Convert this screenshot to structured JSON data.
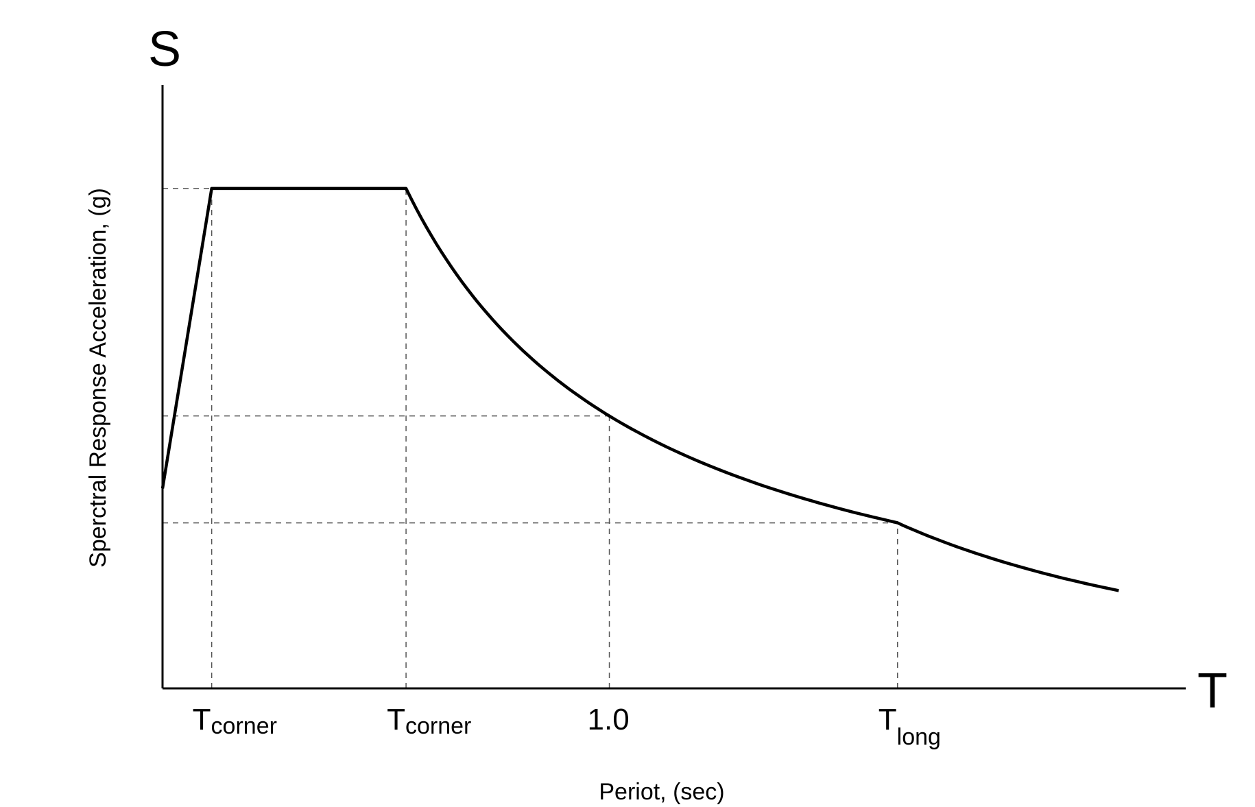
{
  "chart_data": {
    "type": "line",
    "title": "",
    "xlabel": "Periot, (sec)",
    "ylabel": "Sperctral Response Acceleration, (g)",
    "x_axis_symbol": "T",
    "y_axis_symbol": "S",
    "xlim": [
      0,
      2.29
    ],
    "ylim": [
      0,
      1.207
    ],
    "grid": false,
    "x_ticks": [
      {
        "x": 0.11,
        "main": "T",
        "sub": "corner"
      },
      {
        "x": 0.545,
        "main": "T",
        "sub": "corner"
      },
      {
        "x": 1.0,
        "main": "1.0",
        "sub": ""
      },
      {
        "x": 1.645,
        "main": "T",
        "sub": "long"
      }
    ],
    "series": [
      {
        "points": [
          [
            0,
            0.4
          ],
          [
            0.11,
            1.0
          ],
          [
            0.545,
            1.0
          ],
          [
            1.0,
            0.545
          ],
          [
            1.645,
            0.331
          ],
          [
            2.14,
            0.196
          ]
        ],
        "segments": [
          "linear",
          "constant",
          "inverse-T",
          "inverse-T",
          "inverse-T-squared"
        ],
        "color": "#000000"
      }
    ],
    "reference_lines": {
      "horizontal": [
        1.0,
        0.545,
        0.331
      ],
      "vertical": [
        0.11,
        0.545,
        1.0,
        1.645
      ],
      "style": "dashed",
      "color": "#555555"
    }
  }
}
